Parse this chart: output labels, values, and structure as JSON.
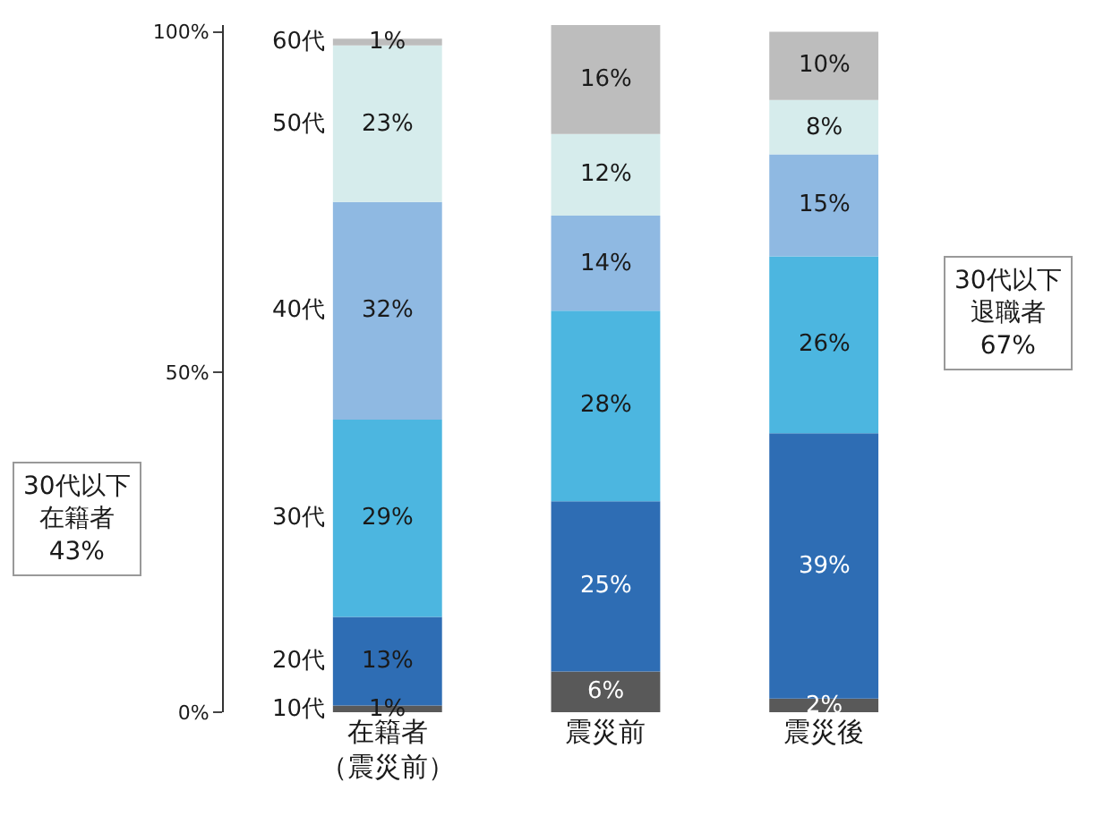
{
  "chart_data": {
    "type": "bar",
    "stacked": true,
    "categories": [
      "在籍者（震災前）",
      "震災前",
      "震災後"
    ],
    "series": [
      {
        "name": "10代",
        "color": "#595959",
        "values": [
          1,
          6,
          2
        ],
        "value_labels": [
          "1%",
          "6%",
          "2%"
        ]
      },
      {
        "name": "20代",
        "color": "#2e6db4",
        "values": [
          13,
          25,
          39
        ],
        "value_labels": [
          "13%",
          "25%",
          "39%"
        ]
      },
      {
        "name": "30代",
        "color": "#4cb6e0",
        "values": [
          29,
          28,
          26
        ],
        "value_labels": [
          "29%",
          "28%",
          "26%"
        ]
      },
      {
        "name": "40代",
        "color": "#8fb9e2",
        "values": [
          32,
          14,
          15
        ],
        "value_labels": [
          "32%",
          "14%",
          "15%"
        ]
      },
      {
        "name": "50代",
        "color": "#d6ecec",
        "values": [
          23,
          12,
          8
        ],
        "value_labels": [
          "23%",
          "12%",
          "8%"
        ]
      },
      {
        "name": "60代",
        "color": "#bdbdbd",
        "values": [
          1,
          16,
          10
        ],
        "value_labels": [
          "1%",
          "16%",
          "10%"
        ]
      }
    ],
    "ylim": [
      0,
      101
    ],
    "yticks": [
      {
        "value": 0,
        "label": "0%"
      },
      {
        "value": 50,
        "label": "50%"
      },
      {
        "value": 100,
        "label": "100%"
      }
    ],
    "legend": false,
    "annotations": [
      "30代以下在籍者43%",
      "30代以下退職者67%"
    ]
  }
}
